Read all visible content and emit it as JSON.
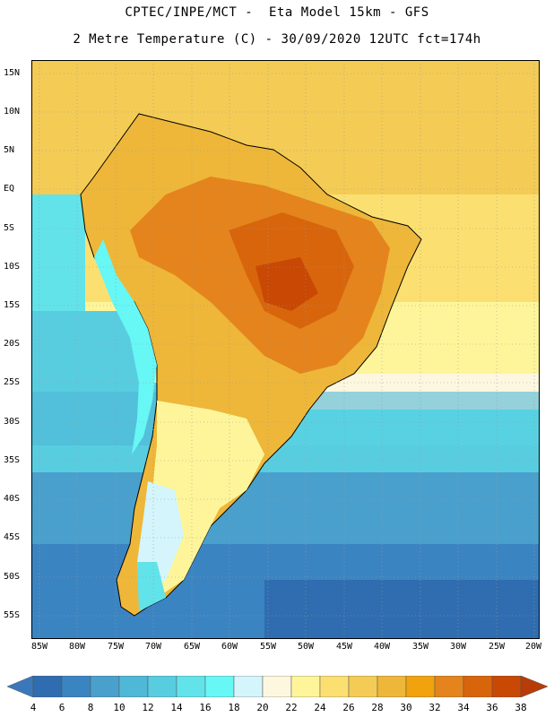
{
  "header": {
    "title_line1": "CPTEC/INPE/MCT -  Eta Model 15km - GFS",
    "title_line2": "2 Metre Temperature (C) - 30/09/2020 12UTC fct=174h"
  },
  "map": {
    "lat_labels": [
      "15N",
      "10N",
      "5N",
      "EQ",
      "5S",
      "10S",
      "15S",
      "20S",
      "25S",
      "30S",
      "35S",
      "40S",
      "45S",
      "50S",
      "55S"
    ],
    "lon_labels": [
      "85W",
      "80W",
      "75W",
      "70W",
      "65W",
      "60W",
      "55W",
      "50W",
      "45W",
      "40W",
      "35W",
      "30W",
      "25W",
      "20W"
    ],
    "gridlines": true
  },
  "colorbar": {
    "labels": [
      "4",
      "6",
      "8",
      "10",
      "12",
      "14",
      "16",
      "18",
      "20",
      "22",
      "24",
      "26",
      "28",
      "30",
      "32",
      "34",
      "36",
      "38"
    ],
    "colors": [
      "#2f6db0",
      "#3b84c2",
      "#4aa0cc",
      "#4fb8d6",
      "#58cde0",
      "#62e3ea",
      "#67f7f5",
      "#d3f5fb",
      "#fdf7e0",
      "#fef59a",
      "#fbe071",
      "#f4cb55",
      "#eeb739",
      "#f0a30c",
      "#e5841c",
      "#d8650c",
      "#c84804"
    ],
    "left_arrow_color": "#3a78bb",
    "right_arrow_color": "#b83c08"
  }
}
